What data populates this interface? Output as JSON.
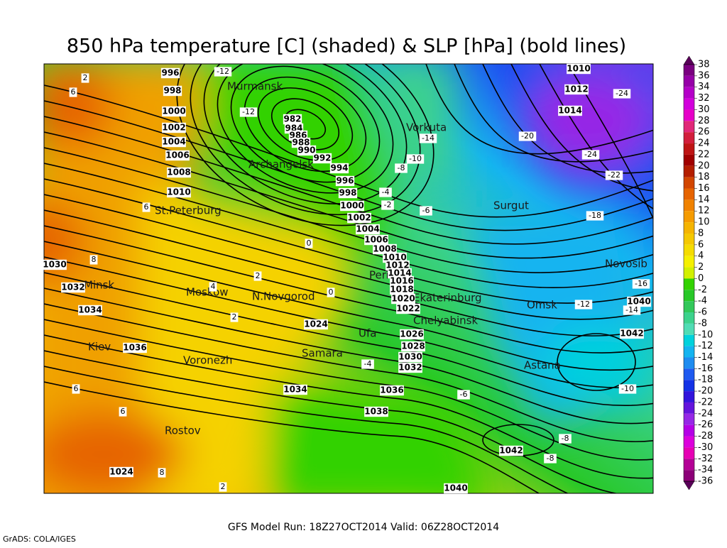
{
  "title": "850 hPa temperature [C] (shaded) & SLP [hPa] (bold lines)",
  "footer": "GFS Model Run: 18Z27OCT2014  Valid: 06Z28OCT2014",
  "credit": "GrADS: COLA/IGES",
  "colorbar": {
    "levels": [
      38,
      36,
      34,
      32,
      30,
      28,
      26,
      24,
      22,
      20,
      18,
      16,
      14,
      12,
      10,
      8,
      6,
      4,
      2,
      0,
      -2,
      -4,
      -6,
      -8,
      -10,
      -12,
      -14,
      -16,
      -18,
      -20,
      -22,
      -24,
      -26,
      -28,
      -30,
      -32,
      -34,
      -36
    ],
    "colors": [
      "#5a005a",
      "#7a0080",
      "#9600a8",
      "#b400c8",
      "#d200dc",
      "#e600c8",
      "#e02878",
      "#d21e3c",
      "#be1414",
      "#a00000",
      "#b41e00",
      "#d24600",
      "#e66400",
      "#f08200",
      "#f59b00",
      "#f5b400",
      "#f5c800",
      "#f5dc00",
      "#f5f000",
      "#d2f000",
      "#32d200",
      "#28c828",
      "#32c85a",
      "#3cd28c",
      "#50dcb4",
      "#00d2dc",
      "#14b4f0",
      "#1e8cf0",
      "#1e5af0",
      "#1432e6",
      "#3214dc",
      "#6414dc",
      "#9628e6",
      "#b400e6",
      "#dc00dc",
      "#e600b4",
      "#b40096",
      "#8c0078",
      "#5a005a"
    ]
  },
  "cities": [
    "Murmansk",
    "Archangelsk",
    "Vorkuta",
    "St.Peterburg",
    "Surgut",
    "Minsk",
    "Moskow",
    "N.Novgorod",
    "Perm",
    "Ekaterinburg",
    "Omsk",
    "Novosib",
    "Chelyabinsk",
    "Ufa",
    "Kiev",
    "Voronezh",
    "Samara",
    "Astana",
    "Rostov"
  ],
  "pressure_labels": [
    996,
    998,
    1000,
    1002,
    1004,
    1006,
    1008,
    1010,
    982,
    984,
    986,
    988,
    990,
    992,
    994,
    996,
    998,
    1000,
    1002,
    1004,
    1006,
    1008,
    1010,
    1012,
    1014,
    1016,
    1018,
    1020,
    1022,
    1024,
    1026,
    1028,
    1030,
    1032,
    1034,
    1036,
    1038,
    1040,
    1042,
    1024,
    1010,
    1012,
    1014,
    1036,
    1034,
    1032,
    1030,
    1040,
    1042
  ],
  "temperature_labels": [
    2,
    6,
    -12,
    -12,
    -14,
    -10,
    -8,
    -4,
    -2,
    -6,
    -20,
    -24,
    -24,
    -22,
    -18,
    -16,
    -14,
    -12,
    6,
    0,
    2,
    0,
    2,
    8,
    4,
    -4,
    -6,
    -10,
    -8,
    -8,
    6,
    6,
    8,
    2
  ]
}
